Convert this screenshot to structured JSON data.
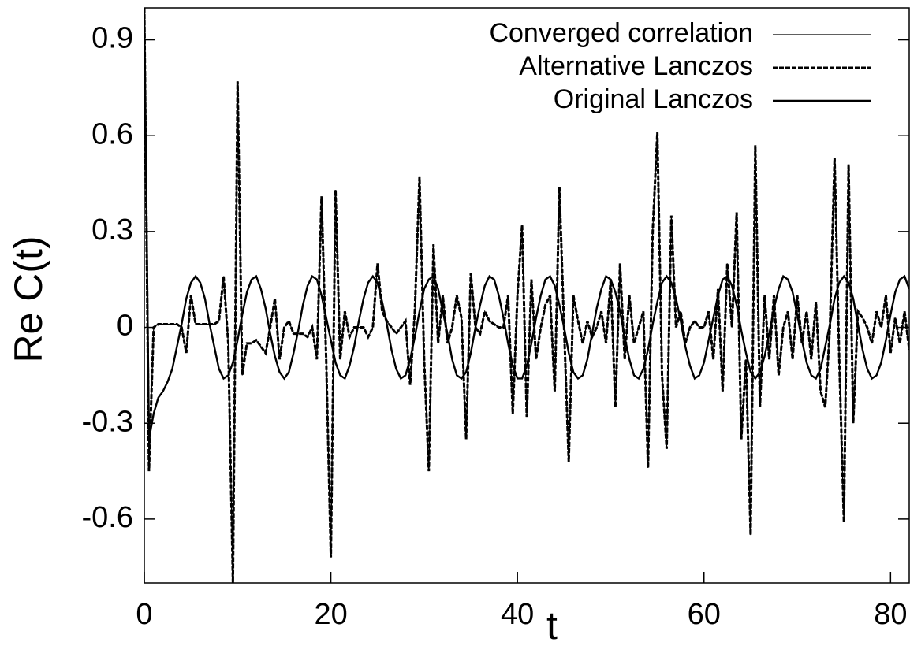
{
  "chart_data": {
    "type": "line",
    "xlabel": "t",
    "ylabel": "Re C(t)",
    "xlim": [
      0,
      82
    ],
    "ylim": [
      -0.8,
      1.0
    ],
    "xticks": [
      0,
      20,
      40,
      60,
      80
    ],
    "yticks": [
      -0.6,
      -0.3,
      0,
      0.3,
      0.6,
      0.9
    ],
    "legend": "upper right",
    "x": [
      0,
      0.5,
      1,
      1.5,
      2,
      2.5,
      3,
      3.5,
      4,
      4.5,
      5,
      5.5,
      6,
      6.5,
      7,
      7.5,
      8,
      8.5,
      9,
      9.5,
      10,
      10.5,
      11,
      11.5,
      12,
      12.5,
      13,
      13.5,
      14,
      14.5,
      15,
      15.5,
      16,
      16.5,
      17,
      17.5,
      18,
      18.5,
      19,
      19.5,
      20,
      20.5,
      21,
      21.5,
      22,
      22.5,
      23,
      23.5,
      24,
      24.5,
      25,
      25.5,
      26,
      26.5,
      27,
      27.5,
      28,
      28.5,
      29,
      29.5,
      30,
      30.5,
      31,
      31.5,
      32,
      32.5,
      33,
      33.5,
      34,
      34.5,
      35,
      35.5,
      36,
      36.5,
      37,
      37.5,
      38,
      38.5,
      39,
      39.5,
      40,
      40.5,
      41,
      41.5,
      42,
      42.5,
      43,
      43.5,
      44,
      44.5,
      45,
      45.5,
      46,
      46.5,
      47,
      47.5,
      48,
      48.5,
      49,
      49.5,
      50,
      50.5,
      51,
      51.5,
      52,
      52.5,
      53,
      53.5,
      54,
      54.5,
      55,
      55.5,
      56,
      56.5,
      57,
      57.5,
      58,
      58.5,
      59,
      59.5,
      60,
      60.5,
      61,
      61.5,
      62,
      62.5,
      63,
      63.5,
      64,
      64.5,
      65,
      65.5,
      66,
      66.5,
      67,
      67.5,
      68,
      68.5,
      69,
      69.5,
      70,
      70.5,
      71,
      71.5,
      72,
      72.5,
      73,
      73.5,
      74,
      74.5,
      75,
      75.5,
      76,
      76.5,
      77,
      77.5,
      78,
      78.5,
      79,
      79.5,
      80,
      80.5,
      81,
      81.5,
      82
    ],
    "series": [
      {
        "name": "Converged correlation",
        "color": "#000000",
        "style": "solid",
        "width": 1.2,
        "values": [
          1.0,
          -0.45,
          0.0,
          0.01,
          0.01,
          0.01,
          0.01,
          0.01,
          0.0,
          -0.08,
          0.1,
          0.01,
          0.01,
          0.01,
          0.01,
          0.01,
          0.02,
          0.16,
          -0.05,
          -0.8,
          0.77,
          -0.15,
          -0.05,
          -0.05,
          -0.04,
          -0.06,
          -0.08,
          0.0,
          0.09,
          -0.1,
          0.0,
          0.02,
          -0.02,
          -0.02,
          -0.02,
          -0.03,
          0.0,
          -0.1,
          0.41,
          -0.1,
          -0.72,
          0.43,
          -0.1,
          0.05,
          -0.03,
          0.0,
          0.0,
          0.0,
          -0.03,
          0.0,
          0.2,
          0.05,
          0.02,
          0.0,
          -0.02,
          0.0,
          0.02,
          -0.18,
          0.05,
          0.47,
          -0.1,
          -0.45,
          0.26,
          -0.05,
          0.1,
          -0.05,
          0.0,
          0.1,
          0.03,
          -0.35,
          0.17,
          0.0,
          -0.02,
          0.05,
          0.02,
          0.01,
          0.0,
          0.0,
          0.1,
          -0.27,
          0.1,
          0.32,
          -0.28,
          0.15,
          -0.1,
          0.0,
          0.07,
          0.1,
          -0.2,
          0.44,
          0.0,
          -0.42,
          0.1,
          0.02,
          -0.05,
          0.02,
          -0.03,
          0.0,
          0.05,
          -0.05,
          0.15,
          -0.25,
          0.2,
          -0.1,
          0.1,
          -0.05,
          0.0,
          0.05,
          -0.44,
          0.3,
          0.61,
          -0.15,
          -0.38,
          0.35,
          0.0,
          0.05,
          -0.05,
          0.0,
          0.02,
          0.0,
          0.0,
          0.05,
          -0.1,
          0.12,
          -0.2,
          0.2,
          0.0,
          0.36,
          -0.35,
          -0.1,
          -0.65,
          0.57,
          -0.25,
          0.1,
          -0.1,
          0.1,
          -0.15,
          0.0,
          0.05,
          -0.1,
          0.1,
          -0.05,
          0.05,
          -0.1,
          0.08,
          -0.2,
          -0.25,
          0.0,
          0.53,
          -0.1,
          -0.61,
          0.51,
          -0.3,
          0.05,
          0.03,
          0.0,
          -0.05,
          0.05,
          0.0,
          0.1,
          -0.08,
          0.03,
          -0.05,
          0.05,
          -0.07
        ]
      },
      {
        "name": "Alternative Lanczos",
        "color": "#000000",
        "style": "dashed",
        "width": 3,
        "values": [
          1.0,
          -0.45,
          0.0,
          0.01,
          0.01,
          0.01,
          0.01,
          0.01,
          0.0,
          -0.08,
          0.1,
          0.01,
          0.01,
          0.01,
          0.01,
          0.01,
          0.02,
          0.16,
          -0.05,
          -0.8,
          0.77,
          -0.15,
          -0.05,
          -0.05,
          -0.04,
          -0.06,
          -0.08,
          0.0,
          0.09,
          -0.1,
          0.0,
          0.02,
          -0.02,
          -0.02,
          -0.02,
          -0.03,
          0.0,
          -0.1,
          0.41,
          -0.1,
          -0.72,
          0.43,
          -0.1,
          0.05,
          -0.03,
          0.0,
          0.0,
          0.0,
          -0.03,
          0.0,
          0.2,
          0.05,
          0.02,
          0.0,
          -0.02,
          0.0,
          0.02,
          -0.18,
          0.05,
          0.47,
          -0.1,
          -0.45,
          0.26,
          -0.05,
          0.1,
          -0.05,
          0.0,
          0.1,
          0.03,
          -0.35,
          0.17,
          0.0,
          -0.02,
          0.05,
          0.02,
          0.01,
          0.0,
          0.0,
          0.1,
          -0.27,
          0.1,
          0.32,
          -0.28,
          0.15,
          -0.1,
          0.0,
          0.07,
          0.1,
          -0.2,
          0.44,
          0.0,
          -0.42,
          0.1,
          0.02,
          -0.05,
          0.02,
          -0.03,
          0.0,
          0.05,
          -0.05,
          0.15,
          -0.25,
          0.2,
          -0.1,
          0.1,
          -0.05,
          0.0,
          0.05,
          -0.44,
          0.3,
          0.61,
          -0.15,
          -0.38,
          0.35,
          0.0,
          0.05,
          -0.05,
          0.0,
          0.02,
          0.0,
          0.0,
          0.05,
          -0.1,
          0.12,
          -0.2,
          0.2,
          0.0,
          0.36,
          -0.35,
          -0.1,
          -0.65,
          0.57,
          -0.25,
          0.1,
          -0.1,
          0.1,
          -0.15,
          0.0,
          0.05,
          -0.1,
          0.1,
          -0.05,
          0.05,
          -0.1,
          0.08,
          -0.2,
          -0.25,
          0.0,
          0.53,
          -0.1,
          -0.61,
          0.51,
          -0.3,
          0.05,
          0.03,
          0.0,
          -0.05,
          0.05,
          0.0,
          0.1,
          -0.08,
          0.03,
          -0.05,
          0.05,
          -0.07
        ]
      },
      {
        "name": "Original Lanczos",
        "color": "#000000",
        "style": "solid",
        "width": 2.4,
        "values": [
          1.0,
          -0.35,
          -0.27,
          -0.22,
          -0.2,
          -0.17,
          -0.13,
          -0.06,
          0.01,
          0.09,
          0.14,
          0.16,
          0.14,
          0.09,
          0.01,
          -0.06,
          -0.13,
          -0.16,
          -0.15,
          -0.11,
          -0.04,
          0.04,
          0.11,
          0.15,
          0.16,
          0.12,
          0.06,
          -0.02,
          -0.09,
          -0.14,
          -0.16,
          -0.14,
          -0.08,
          -0.01,
          0.07,
          0.13,
          0.16,
          0.15,
          0.1,
          0.03,
          -0.04,
          -0.11,
          -0.15,
          -0.16,
          -0.12,
          -0.06,
          0.02,
          0.09,
          0.14,
          0.16,
          0.14,
          0.08,
          0.01,
          -0.07,
          -0.13,
          -0.16,
          -0.15,
          -0.1,
          -0.03,
          0.05,
          0.12,
          0.15,
          0.16,
          0.12,
          0.05,
          -0.02,
          -0.1,
          -0.15,
          -0.16,
          -0.14,
          -0.08,
          0.0,
          0.07,
          0.13,
          0.16,
          0.15,
          0.1,
          0.03,
          -0.05,
          -0.12,
          -0.16,
          -0.16,
          -0.12,
          -0.05,
          0.03,
          0.1,
          0.15,
          0.16,
          0.13,
          0.07,
          0.0,
          -0.08,
          -0.14,
          -0.16,
          -0.15,
          -0.1,
          -0.02,
          0.06,
          0.12,
          0.16,
          0.15,
          0.11,
          0.05,
          -0.03,
          -0.1,
          -0.15,
          -0.16,
          -0.13,
          -0.07,
          0.01,
          0.08,
          0.14,
          0.16,
          0.14,
          0.09,
          0.02,
          -0.06,
          -0.12,
          -0.16,
          -0.15,
          -0.11,
          -0.04,
          0.03,
          0.1,
          0.15,
          0.16,
          0.13,
          0.07,
          -0.01,
          -0.08,
          -0.14,
          -0.16,
          -0.14,
          -0.09,
          -0.02,
          0.06,
          0.12,
          0.16,
          0.15,
          0.11,
          0.04,
          -0.04,
          -0.11,
          -0.15,
          -0.16,
          -0.13,
          -0.06,
          0.01,
          0.09,
          0.14,
          0.16,
          0.14,
          0.09,
          0.01,
          -0.07,
          -0.13,
          -0.16,
          -0.15,
          -0.11,
          -0.04,
          0.04,
          0.11,
          0.15,
          0.16,
          0.12
        ]
      }
    ]
  }
}
